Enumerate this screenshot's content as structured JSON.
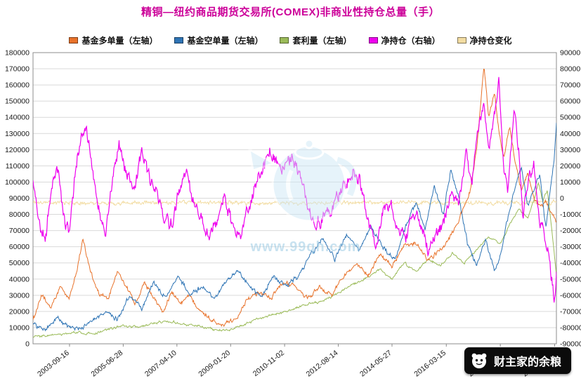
{
  "title": "精铜—纽约商品期货交易所(COMEX)非商业性持仓总量（手）",
  "title_color": "#cc0099",
  "watermark": {
    "text": "www.99qh.com",
    "color": "#9ccbe4"
  },
  "badge": {
    "text": "财主家的余粮",
    "bg": "#0b0b0b",
    "fg": "#ffffff"
  },
  "chart_data": {
    "type": "line",
    "title": "精铜—纽约商品期货交易所(COMEX)非商业性持仓总量（手）",
    "grid": true,
    "legend_position": "top",
    "grid_color": "#d9d9d9",
    "axis_color": "#8c8c8c",
    "text_color": "#1a1a1a",
    "x_axis": {
      "range": [
        2002.5,
        2019.85
      ],
      "ticks": [
        "2003-09-16",
        "2005-06-28",
        "2007-04-10",
        "2009-01-20",
        "2010-11-02",
        "2012-08-14",
        "2014-05-27",
        "2016-03-15",
        "2018-01-02",
        "2019-10-15"
      ],
      "tick_years": [
        2003.71,
        2005.49,
        2007.27,
        2009.05,
        2010.84,
        2012.62,
        2014.4,
        2016.2,
        2017.99,
        2019.79
      ]
    },
    "y_left": {
      "min": 0,
      "max": 180000,
      "step": 10000
    },
    "y_right": {
      "min": -90000,
      "max": 90000,
      "step": 10000
    },
    "draw_order": [
      4,
      2,
      0,
      1,
      3
    ],
    "series": [
      {
        "id": "fund-long",
        "label": "基金多单量（左轴）",
        "color": "#e8722a",
        "axis": "left",
        "jitter": 3000,
        "points": [
          [
            2002.5,
            15000
          ],
          [
            2002.8,
            30000
          ],
          [
            2003.1,
            22000
          ],
          [
            2003.4,
            35000
          ],
          [
            2003.7,
            28000
          ],
          [
            2003.95,
            45000
          ],
          [
            2004.15,
            65000
          ],
          [
            2004.4,
            45000
          ],
          [
            2004.7,
            30000
          ],
          [
            2005.0,
            28000
          ],
          [
            2005.3,
            45000
          ],
          [
            2005.6,
            35000
          ],
          [
            2005.9,
            25000
          ],
          [
            2006.2,
            38000
          ],
          [
            2006.5,
            28000
          ],
          [
            2006.8,
            20000
          ],
          [
            2007.1,
            32000
          ],
          [
            2007.4,
            25000
          ],
          [
            2007.7,
            30000
          ],
          [
            2008.0,
            22000
          ],
          [
            2008.4,
            15000
          ],
          [
            2008.8,
            12000
          ],
          [
            2009.2,
            15000
          ],
          [
            2009.6,
            28000
          ],
          [
            2010.0,
            32000
          ],
          [
            2010.4,
            28000
          ],
          [
            2010.8,
            38000
          ],
          [
            2011.2,
            35000
          ],
          [
            2011.6,
            28000
          ],
          [
            2012.0,
            35000
          ],
          [
            2012.4,
            30000
          ],
          [
            2012.8,
            42000
          ],
          [
            2013.2,
            50000
          ],
          [
            2013.6,
            42000
          ],
          [
            2014.0,
            55000
          ],
          [
            2014.4,
            48000
          ],
          [
            2014.8,
            60000
          ],
          [
            2015.2,
            62000
          ],
          [
            2015.6,
            52000
          ],
          [
            2016.0,
            58000
          ],
          [
            2016.4,
            68000
          ],
          [
            2016.8,
            85000
          ],
          [
            2017.0,
            95000
          ],
          [
            2017.2,
            120000
          ],
          [
            2017.35,
            150000
          ],
          [
            2017.45,
            171000
          ],
          [
            2017.6,
            140000
          ],
          [
            2017.8,
            155000
          ],
          [
            2017.95,
            130000
          ],
          [
            2018.1,
            115000
          ],
          [
            2018.3,
            135000
          ],
          [
            2018.5,
            110000
          ],
          [
            2018.7,
            95000
          ],
          [
            2018.9,
            105000
          ],
          [
            2019.1,
            90000
          ],
          [
            2019.3,
            85000
          ],
          [
            2019.5,
            88000
          ],
          [
            2019.7,
            80000
          ],
          [
            2019.85,
            75000
          ]
        ]
      },
      {
        "id": "fund-short",
        "label": "基金空单量（左轴）",
        "color": "#2e74b5",
        "axis": "left",
        "jitter": 3200,
        "points": [
          [
            2002.5,
            13000
          ],
          [
            2002.9,
            8000
          ],
          [
            2003.3,
            16000
          ],
          [
            2003.7,
            10000
          ],
          [
            2004.1,
            9000
          ],
          [
            2004.5,
            14000
          ],
          [
            2004.9,
            20000
          ],
          [
            2005.3,
            15000
          ],
          [
            2005.7,
            30000
          ],
          [
            2006.1,
            22000
          ],
          [
            2006.5,
            38000
          ],
          [
            2006.9,
            28000
          ],
          [
            2007.3,
            42000
          ],
          [
            2007.7,
            30000
          ],
          [
            2008.1,
            36000
          ],
          [
            2008.5,
            28000
          ],
          [
            2008.9,
            38000
          ],
          [
            2009.3,
            45000
          ],
          [
            2009.7,
            35000
          ],
          [
            2010.1,
            30000
          ],
          [
            2010.5,
            42000
          ],
          [
            2010.9,
            35000
          ],
          [
            2011.3,
            42000
          ],
          [
            2011.7,
            55000
          ],
          [
            2012.1,
            65000
          ],
          [
            2012.5,
            52000
          ],
          [
            2012.9,
            68000
          ],
          [
            2013.3,
            58000
          ],
          [
            2013.7,
            72000
          ],
          [
            2014.1,
            60000
          ],
          [
            2014.5,
            52000
          ],
          [
            2014.9,
            75000
          ],
          [
            2015.2,
            88000
          ],
          [
            2015.5,
            70000
          ],
          [
            2015.8,
            98000
          ],
          [
            2016.1,
            80000
          ],
          [
            2016.35,
            108000
          ],
          [
            2016.6,
            92000
          ],
          [
            2016.9,
            62000
          ],
          [
            2017.2,
            48000
          ],
          [
            2017.5,
            65000
          ],
          [
            2017.8,
            45000
          ],
          [
            2018.0,
            55000
          ],
          [
            2018.2,
            75000
          ],
          [
            2018.45,
            95000
          ],
          [
            2018.7,
            108000
          ],
          [
            2018.9,
            85000
          ],
          [
            2019.1,
            95000
          ],
          [
            2019.3,
            105000
          ],
          [
            2019.5,
            72000
          ],
          [
            2019.65,
            95000
          ],
          [
            2019.78,
            115000
          ],
          [
            2019.85,
            136000
          ]
        ]
      },
      {
        "id": "spread",
        "label": "套利量（左轴）",
        "color": "#9bbb59",
        "axis": "left",
        "jitter": 1600,
        "points": [
          [
            2002.5,
            4000
          ],
          [
            2003.0,
            5000
          ],
          [
            2003.5,
            6000
          ],
          [
            2004.0,
            7000
          ],
          [
            2004.5,
            6000
          ],
          [
            2005.0,
            9000
          ],
          [
            2005.5,
            11000
          ],
          [
            2006.0,
            10000
          ],
          [
            2006.5,
            13000
          ],
          [
            2007.0,
            14000
          ],
          [
            2007.5,
            12000
          ],
          [
            2008.0,
            11000
          ],
          [
            2008.5,
            9000
          ],
          [
            2009.0,
            8000
          ],
          [
            2009.5,
            12000
          ],
          [
            2010.0,
            16000
          ],
          [
            2010.5,
            18000
          ],
          [
            2011.0,
            21000
          ],
          [
            2011.5,
            24000
          ],
          [
            2012.0,
            26000
          ],
          [
            2012.5,
            30000
          ],
          [
            2013.0,
            36000
          ],
          [
            2013.5,
            40000
          ],
          [
            2014.0,
            46000
          ],
          [
            2014.4,
            40000
          ],
          [
            2014.8,
            50000
          ],
          [
            2015.2,
            45000
          ],
          [
            2015.6,
            52000
          ],
          [
            2016.0,
            48000
          ],
          [
            2016.4,
            56000
          ],
          [
            2016.8,
            50000
          ],
          [
            2017.2,
            58000
          ],
          [
            2017.6,
            66000
          ],
          [
            2018.0,
            62000
          ],
          [
            2018.3,
            74000
          ],
          [
            2018.6,
            84000
          ],
          [
            2018.9,
            78000
          ],
          [
            2019.1,
            88000
          ],
          [
            2019.25,
            100000
          ],
          [
            2019.4,
            88000
          ],
          [
            2019.55,
            95000
          ],
          [
            2019.7,
            70000
          ],
          [
            2019.85,
            42000
          ]
        ]
      },
      {
        "id": "net-position",
        "label": "净持仓（右轴）",
        "color": "#ee00ee",
        "axis": "right",
        "jitter": 9000,
        "points": [
          [
            2002.5,
            10000
          ],
          [
            2002.7,
            -15000
          ],
          [
            2002.9,
            -27000
          ],
          [
            2003.1,
            5000
          ],
          [
            2003.3,
            20000
          ],
          [
            2003.5,
            -10000
          ],
          [
            2003.7,
            -20000
          ],
          [
            2003.9,
            15000
          ],
          [
            2004.1,
            40000
          ],
          [
            2004.25,
            47000
          ],
          [
            2004.45,
            20000
          ],
          [
            2004.65,
            -5000
          ],
          [
            2004.9,
            -25000
          ],
          [
            2005.1,
            5000
          ],
          [
            2005.35,
            35000
          ],
          [
            2005.6,
            15000
          ],
          [
            2005.85,
            5000
          ],
          [
            2006.1,
            28000
          ],
          [
            2006.35,
            15000
          ],
          [
            2006.6,
            2000
          ],
          [
            2006.85,
            -10000
          ],
          [
            2007.1,
            -17000
          ],
          [
            2007.35,
            5000
          ],
          [
            2007.6,
            15000
          ],
          [
            2007.85,
            -5000
          ],
          [
            2008.1,
            -15000
          ],
          [
            2008.35,
            -27000
          ],
          [
            2008.6,
            -12000
          ],
          [
            2008.85,
            0
          ],
          [
            2009.1,
            -15000
          ],
          [
            2009.35,
            -25000
          ],
          [
            2009.6,
            -8000
          ],
          [
            2009.85,
            5000
          ],
          [
            2010.1,
            18000
          ],
          [
            2010.35,
            30000
          ],
          [
            2010.6,
            22000
          ],
          [
            2010.85,
            18000
          ],
          [
            2011.1,
            26000
          ],
          [
            2011.35,
            15000
          ],
          [
            2011.6,
            -5000
          ],
          [
            2011.85,
            -18000
          ],
          [
            2012.1,
            -12000
          ],
          [
            2012.35,
            -8000
          ],
          [
            2012.6,
            2000
          ],
          [
            2012.85,
            8000
          ],
          [
            2013.1,
            18000
          ],
          [
            2013.35,
            10000
          ],
          [
            2013.6,
            -15000
          ],
          [
            2013.85,
            -30000
          ],
          [
            2014.1,
            -8000
          ],
          [
            2014.35,
            -3000
          ],
          [
            2014.6,
            -18000
          ],
          [
            2014.85,
            -25000
          ],
          [
            2015.1,
            -8000
          ],
          [
            2015.35,
            -15000
          ],
          [
            2015.6,
            -33000
          ],
          [
            2015.85,
            -22000
          ],
          [
            2016.1,
            -15000
          ],
          [
            2016.35,
            5000
          ],
          [
            2016.6,
            -5000
          ],
          [
            2016.85,
            28000
          ],
          [
            2017.05,
            10000
          ],
          [
            2017.25,
            45000
          ],
          [
            2017.45,
            60000
          ],
          [
            2017.6,
            30000
          ],
          [
            2017.8,
            50000
          ],
          [
            2017.95,
            73000
          ],
          [
            2018.1,
            20000
          ],
          [
            2018.25,
            5000
          ],
          [
            2018.45,
            55000
          ],
          [
            2018.6,
            30000
          ],
          [
            2018.75,
            -12000
          ],
          [
            2018.95,
            15000
          ],
          [
            2019.1,
            20000
          ],
          [
            2019.25,
            -12000
          ],
          [
            2019.4,
            -20000
          ],
          [
            2019.55,
            -32000
          ],
          [
            2019.7,
            -50000
          ],
          [
            2019.78,
            -66000
          ],
          [
            2019.85,
            -48000
          ]
        ]
      },
      {
        "id": "net-change",
        "label": "净持仓变化",
        "color": "#f2dca2",
        "axis": "right",
        "jitter": 2600,
        "points": [
          [
            2002.5,
            -2500
          ],
          [
            2005.0,
            -3000
          ],
          [
            2008.0,
            -2500
          ],
          [
            2011.0,
            -3000
          ],
          [
            2014.0,
            -2500
          ],
          [
            2017.0,
            -3000
          ],
          [
            2019.85,
            -2500
          ]
        ]
      }
    ]
  }
}
